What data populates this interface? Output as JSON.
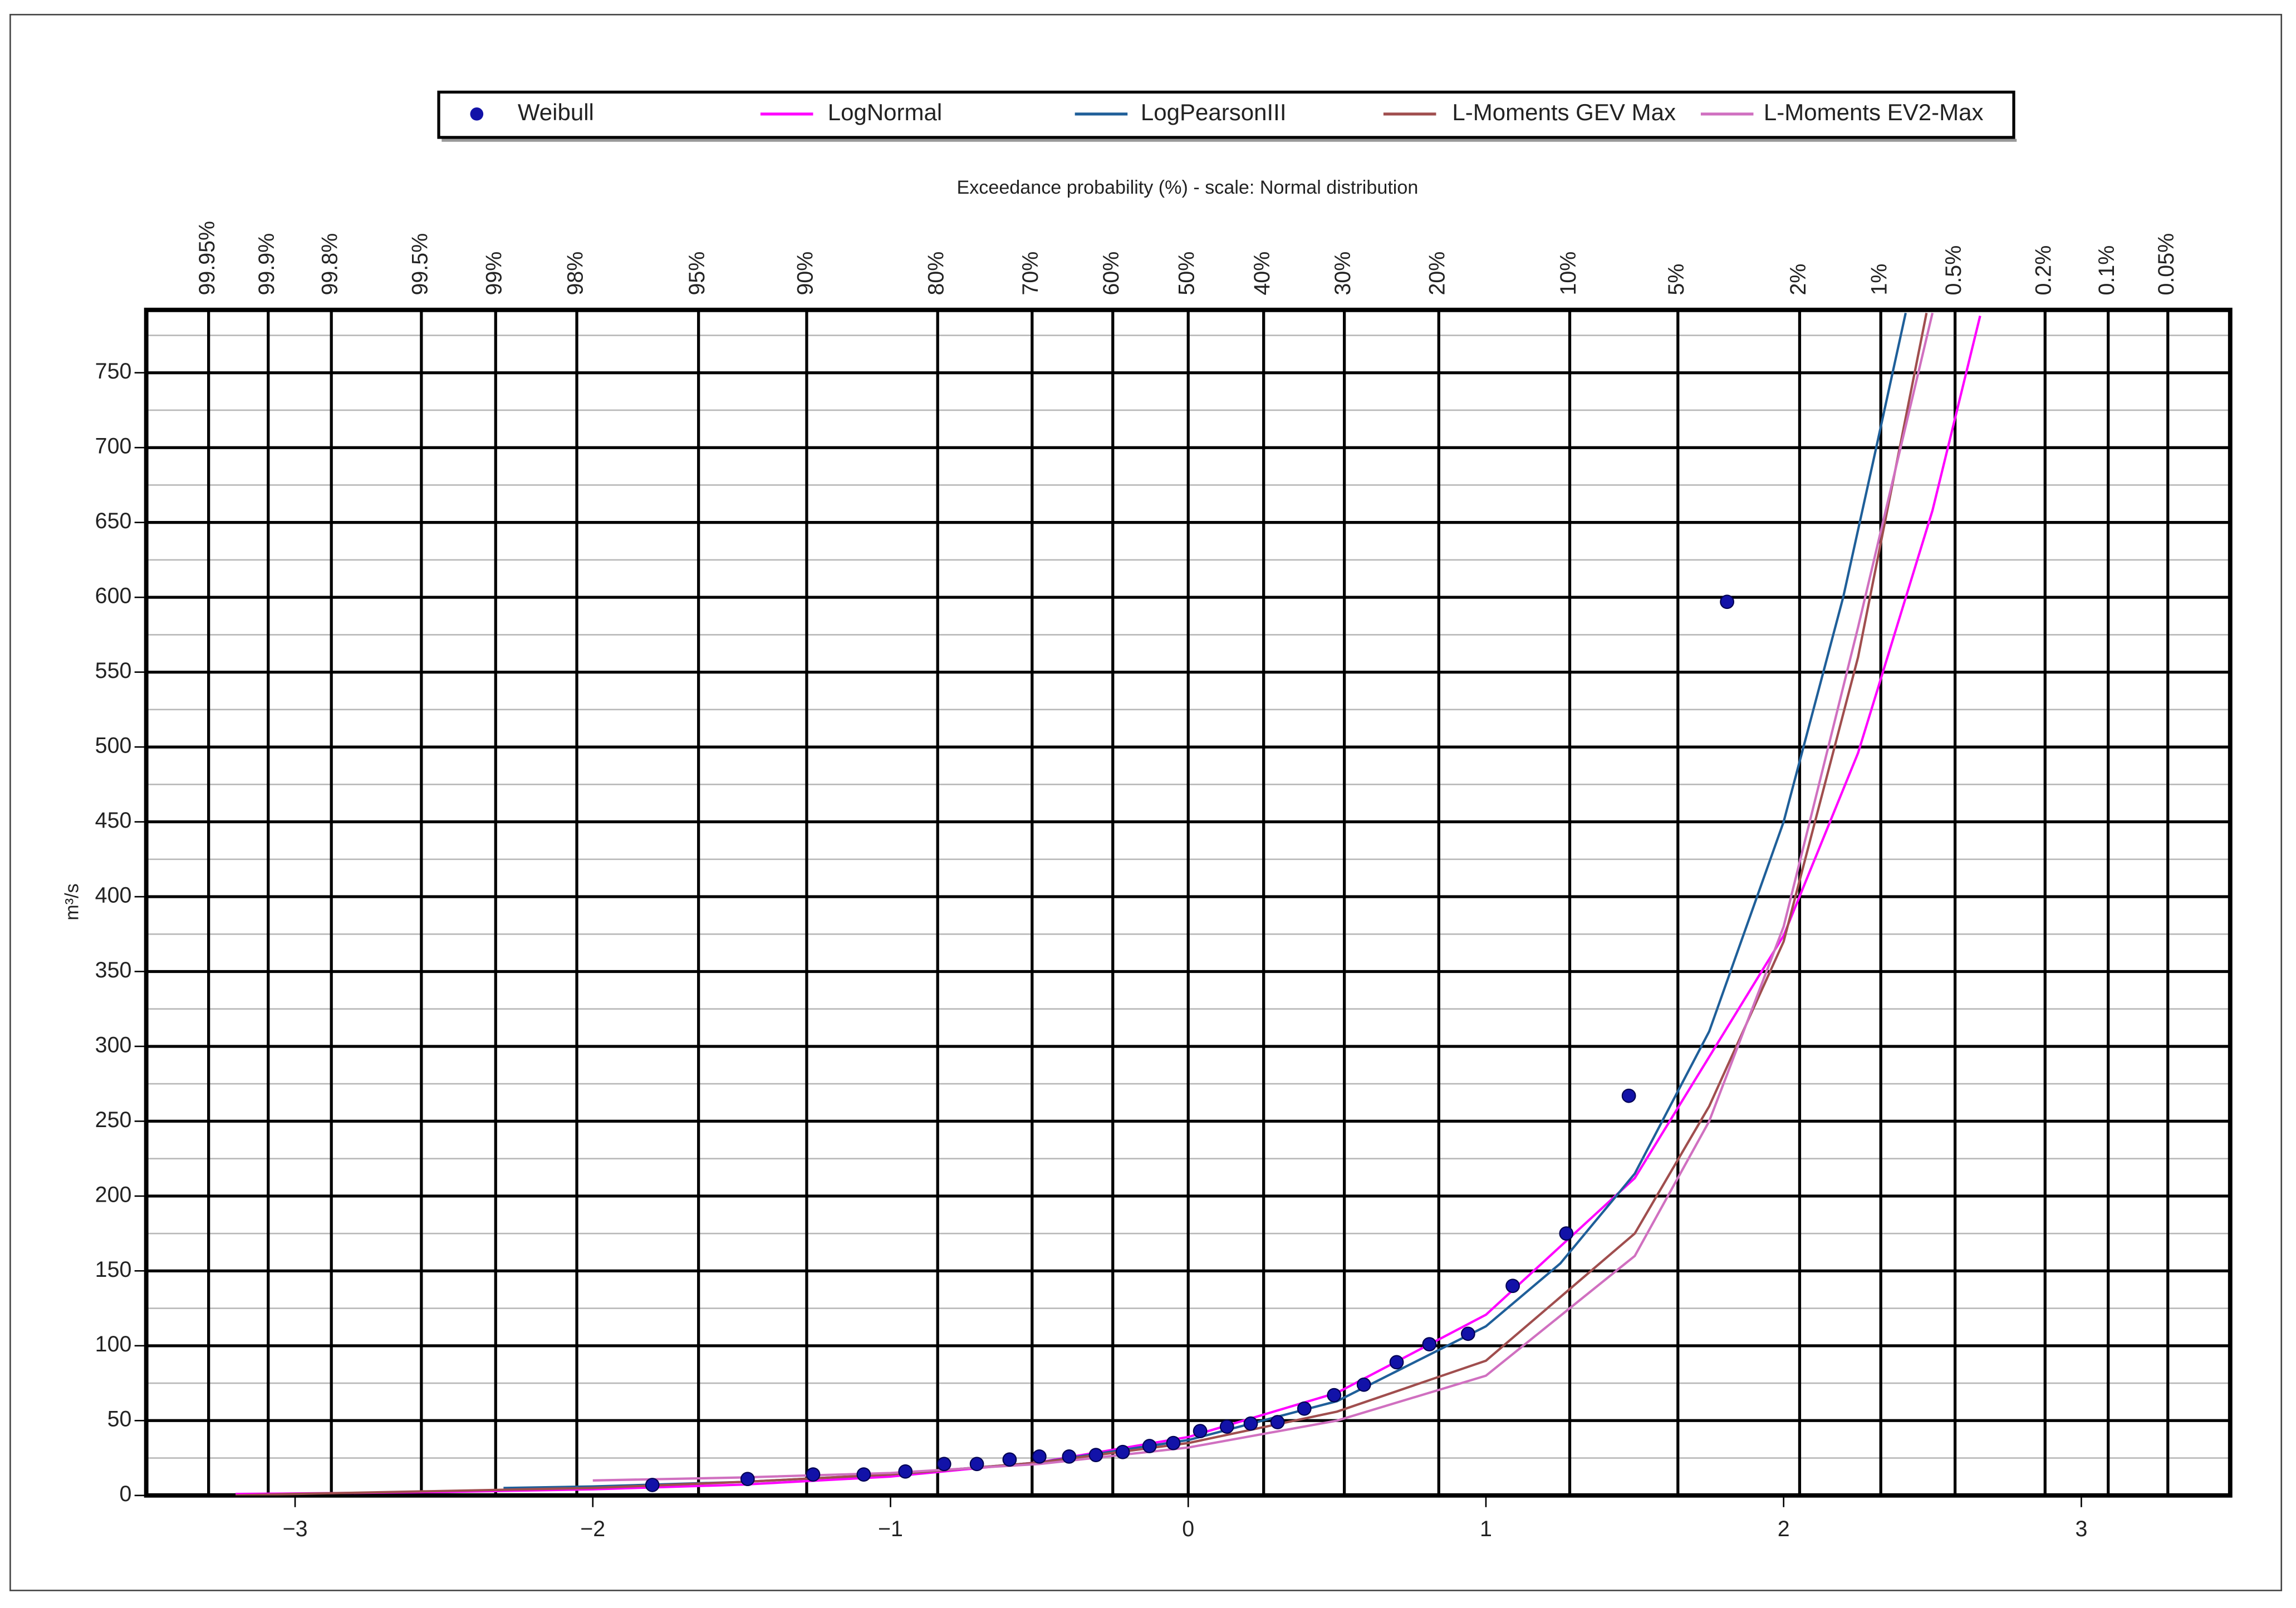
{
  "chart_data": {
    "type": "line",
    "x2label": "Exceedance probability (%) - scale: Normal distribution",
    "ylabel": "m³/s",
    "xlim": [
      -3.5,
      3.5
    ],
    "xticks": [
      {
        "value": -3,
        "label": "−3"
      },
      {
        "value": -2,
        "label": "−2"
      },
      {
        "value": -1,
        "label": "−1"
      },
      0,
      1,
      2,
      3
    ],
    "ylim": [
      0,
      792
    ],
    "yticks": [
      0,
      50,
      100,
      150,
      200,
      250,
      300,
      350,
      400,
      450,
      500,
      550,
      600,
      650,
      700,
      750
    ],
    "yminorticks": [
      25,
      75,
      125,
      175,
      225,
      275,
      325,
      375,
      425,
      475,
      525,
      575,
      625,
      675,
      725,
      775
    ],
    "x2scale": "normal",
    "x2ticks": [
      {
        "value": 99.95,
        "label": "99.95%"
      },
      {
        "value": 99.9,
        "label": "99.9%"
      },
      {
        "value": 99.8,
        "label": "99.8%"
      },
      {
        "value": 99.5,
        "label": "99.5%"
      },
      {
        "value": 99,
        "label": "99%"
      },
      {
        "value": 98,
        "label": "98%"
      },
      {
        "value": 95,
        "label": "95%"
      },
      {
        "value": 90,
        "label": "90%"
      },
      {
        "value": 80,
        "label": "80%"
      },
      {
        "value": 70,
        "label": "70%"
      },
      {
        "value": 60,
        "label": "60%"
      },
      {
        "value": 50,
        "label": "50%"
      },
      {
        "value": 40,
        "label": "40%"
      },
      {
        "value": 30,
        "label": "30%"
      },
      {
        "value": 20,
        "label": "20%"
      },
      {
        "value": 10,
        "label": "10%"
      },
      {
        "value": 5,
        "label": "5%"
      },
      {
        "value": 2,
        "label": "2%"
      },
      {
        "value": 1,
        "label": "1%"
      },
      {
        "value": 0.5,
        "label": "0.5%"
      },
      {
        "value": 0.2,
        "label": "0.2%"
      },
      {
        "value": 0.1,
        "label": "0.1%"
      },
      {
        "value": 0.05,
        "label": "0.05%"
      }
    ],
    "grid": true,
    "legend": "top",
    "series": [
      {
        "name": "Weibull",
        "type": "scatter",
        "color": "#1212a8",
        "x": [
          -1.8,
          -1.48,
          -1.26,
          -1.09,
          -0.95,
          -0.82,
          -0.71,
          -0.6,
          -0.5,
          -0.4,
          -0.31,
          -0.22,
          -0.13,
          -0.05,
          0.04,
          0.13,
          0.21,
          0.3,
          0.39,
          0.49,
          0.59,
          0.7,
          0.81,
          0.94,
          1.09,
          1.27,
          1.48,
          1.81
        ],
        "values": [
          7,
          11,
          14,
          14,
          16,
          21,
          21,
          24,
          26,
          26,
          27,
          29,
          33,
          35,
          43,
          46,
          48,
          49,
          58,
          67,
          74,
          89,
          101,
          108,
          140,
          175,
          267,
          597
        ]
      },
      {
        "name": "LogNormal",
        "type": "line",
        "color": "#ff00ff",
        "x": [
          -3.2,
          -3,
          -2.5,
          -2,
          -1.5,
          -1,
          -0.5,
          0,
          0.5,
          1,
          1.5,
          2,
          2.25,
          2.5,
          2.66
        ],
        "values": [
          1,
          1.3,
          2.3,
          4.1,
          7.2,
          12.6,
          22.2,
          39,
          68.6,
          120.7,
          212,
          374,
          496,
          658,
          788
        ]
      },
      {
        "name": "LogPearsonIII",
        "type": "line",
        "color": "#1f5f99",
        "x": [
          -2.3,
          -2,
          -1.5,
          -1,
          -0.5,
          0,
          0.5,
          1,
          1.25,
          1.5,
          1.75,
          2,
          2.2,
          2.3,
          2.41
        ],
        "values": [
          5,
          6,
          9,
          14,
          22,
          37,
          63,
          113,
          155,
          215,
          310,
          450,
          600,
          690,
          790
        ]
      },
      {
        "name": "L-Moments GEV Max",
        "type": "line",
        "color": "#a04e4e",
        "x": [
          -3.2,
          -3,
          -2.5,
          -2,
          -1.5,
          -1,
          -0.5,
          0,
          0.5,
          1,
          1.5,
          1.75,
          2,
          2.25,
          2.48
        ],
        "values": [
          0,
          1,
          3,
          5,
          9,
          14,
          22,
          35,
          56,
          90,
          175,
          260,
          370,
          560,
          790
        ]
      },
      {
        "name": "L-Moments EV2-Max",
        "type": "line",
        "color": "#d070c0",
        "x": [
          -2,
          -1.5,
          -1,
          -0.5,
          0,
          0.5,
          1,
          1.5,
          1.75,
          2,
          2.25,
          2.5
        ],
        "values": [
          10,
          12,
          15,
          21,
          32,
          50,
          80,
          160,
          250,
          380,
          580,
          790
        ]
      }
    ]
  }
}
